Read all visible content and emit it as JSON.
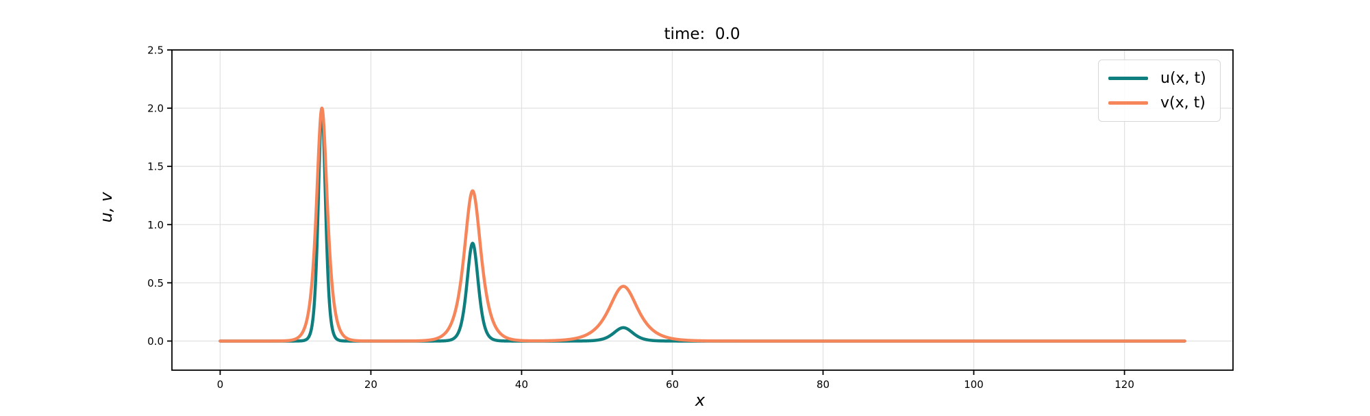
{
  "chart_data": {
    "type": "line",
    "title": "time:  0.0",
    "xlabel": "x",
    "ylabel": "u, v",
    "xlim": [
      -6.4,
      134.4
    ],
    "ylim": [
      -0.25,
      2.5
    ],
    "xticks": {
      "values": [
        0,
        20,
        40,
        60,
        80,
        100,
        120
      ],
      "labels": [
        "0",
        "20",
        "40",
        "60",
        "80",
        "100",
        "120"
      ]
    },
    "yticks": {
      "values": [
        0.0,
        0.5,
        1.0,
        1.5,
        2.0,
        2.5
      ],
      "labels": [
        "0.0",
        "0.5",
        "1.0",
        "1.5",
        "2.0",
        "2.5"
      ]
    },
    "grid": true,
    "legend_position": "upper right",
    "line_width": 4.5,
    "x_sample_range": [
      0,
      128,
      0.05
    ],
    "series": [
      {
        "name": "u(x, t)",
        "color": "#0e7e7e",
        "shape": "sech2",
        "peaks": [
          {
            "center": 13.5,
            "amplitude": 2.0,
            "width_k": 1.55
          },
          {
            "center": 33.5,
            "amplitude": 0.84,
            "width_k": 1.0
          },
          {
            "center": 53.5,
            "amplitude": 0.115,
            "width_k": 0.585
          }
        ]
      },
      {
        "name": "v(x, t)",
        "color": "#f6855a",
        "shape": "sech",
        "peaks": [
          {
            "center": 13.5,
            "amplitude": 2.0,
            "width_k": 1.55
          },
          {
            "center": 33.5,
            "amplitude": 1.29,
            "width_k": 1.0
          },
          {
            "center": 53.5,
            "amplitude": 0.47,
            "width_k": 0.585
          }
        ]
      }
    ],
    "colors": {
      "grid": "#e2e2e2",
      "spine": "#000000",
      "tick_text": "#000000",
      "legend_border": "#d6d6d6",
      "background": "#ffffff"
    }
  }
}
